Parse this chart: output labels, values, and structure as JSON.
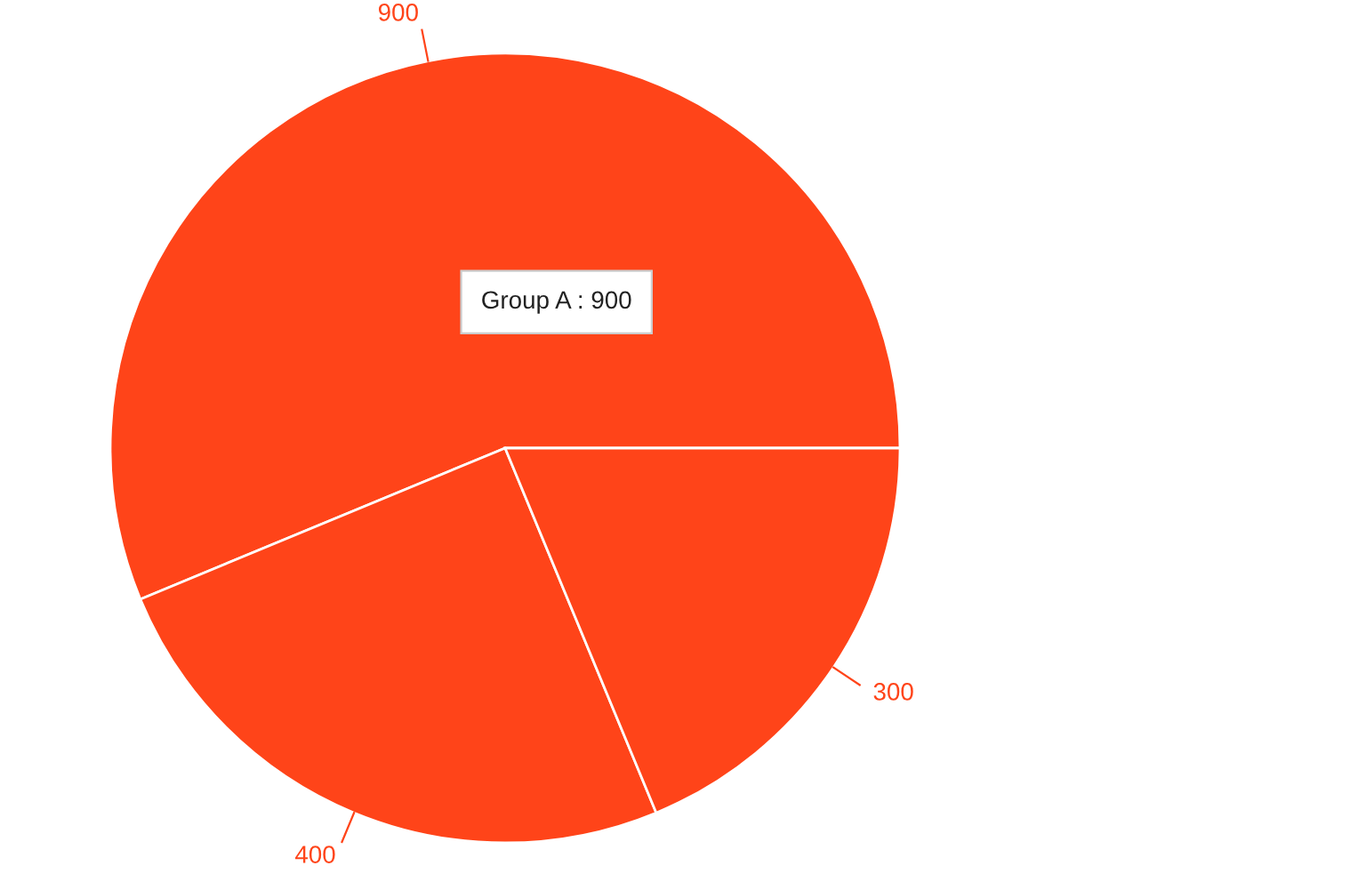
{
  "chart_data": {
    "type": "pie",
    "categories": [
      null,
      null,
      null
    ],
    "values": [
      900,
      400,
      300
    ],
    "colors": [
      "#ff4419",
      "#ff4419",
      "#ff4419"
    ],
    "data_labels": true,
    "annotations": [
      "Group A : 900"
    ]
  }
}
